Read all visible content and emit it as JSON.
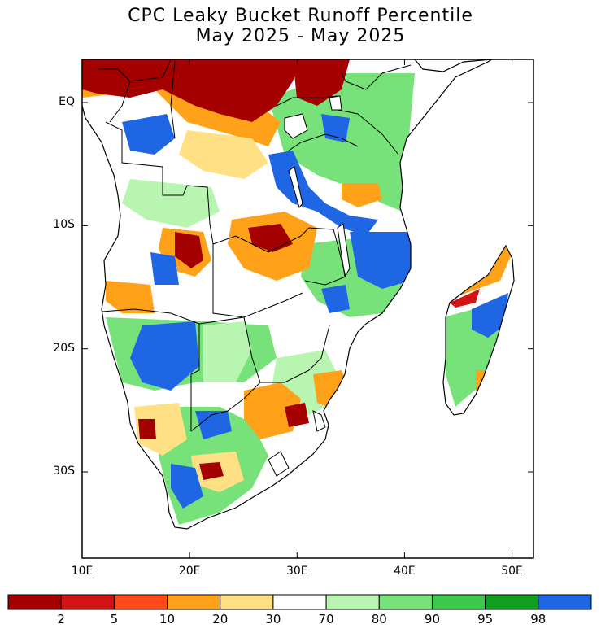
{
  "title": "CPC Leaky Bucket Runoff Percentile",
  "subtitle": "May 2025 - May 2025",
  "map": {
    "lon_range": [
      10,
      52
    ],
    "lat_range": [
      -37,
      3.5
    ],
    "lat_ticks": [
      {
        "value": 0,
        "label": "EQ"
      },
      {
        "value": -10,
        "label": "10S"
      },
      {
        "value": -20,
        "label": "20S"
      },
      {
        "value": -30,
        "label": "30S"
      }
    ],
    "lon_ticks": [
      {
        "value": 10,
        "label": "10E"
      },
      {
        "value": 20,
        "label": "20E"
      },
      {
        "value": 30,
        "label": "30E"
      },
      {
        "value": 40,
        "label": "40E"
      },
      {
        "value": 50,
        "label": "50E"
      }
    ]
  },
  "colorbar": {
    "boundaries": [
      "2",
      "5",
      "10",
      "20",
      "30",
      "70",
      "80",
      "90",
      "95",
      "98"
    ],
    "colors": [
      "#a50000",
      "#d21414",
      "#ff4a1a",
      "#ffa21a",
      "#ffe084",
      "#ffffff",
      "#b8f5b0",
      "#78e27a",
      "#3cc84a",
      "#0f9e1e",
      "#1f66e5"
    ]
  }
}
